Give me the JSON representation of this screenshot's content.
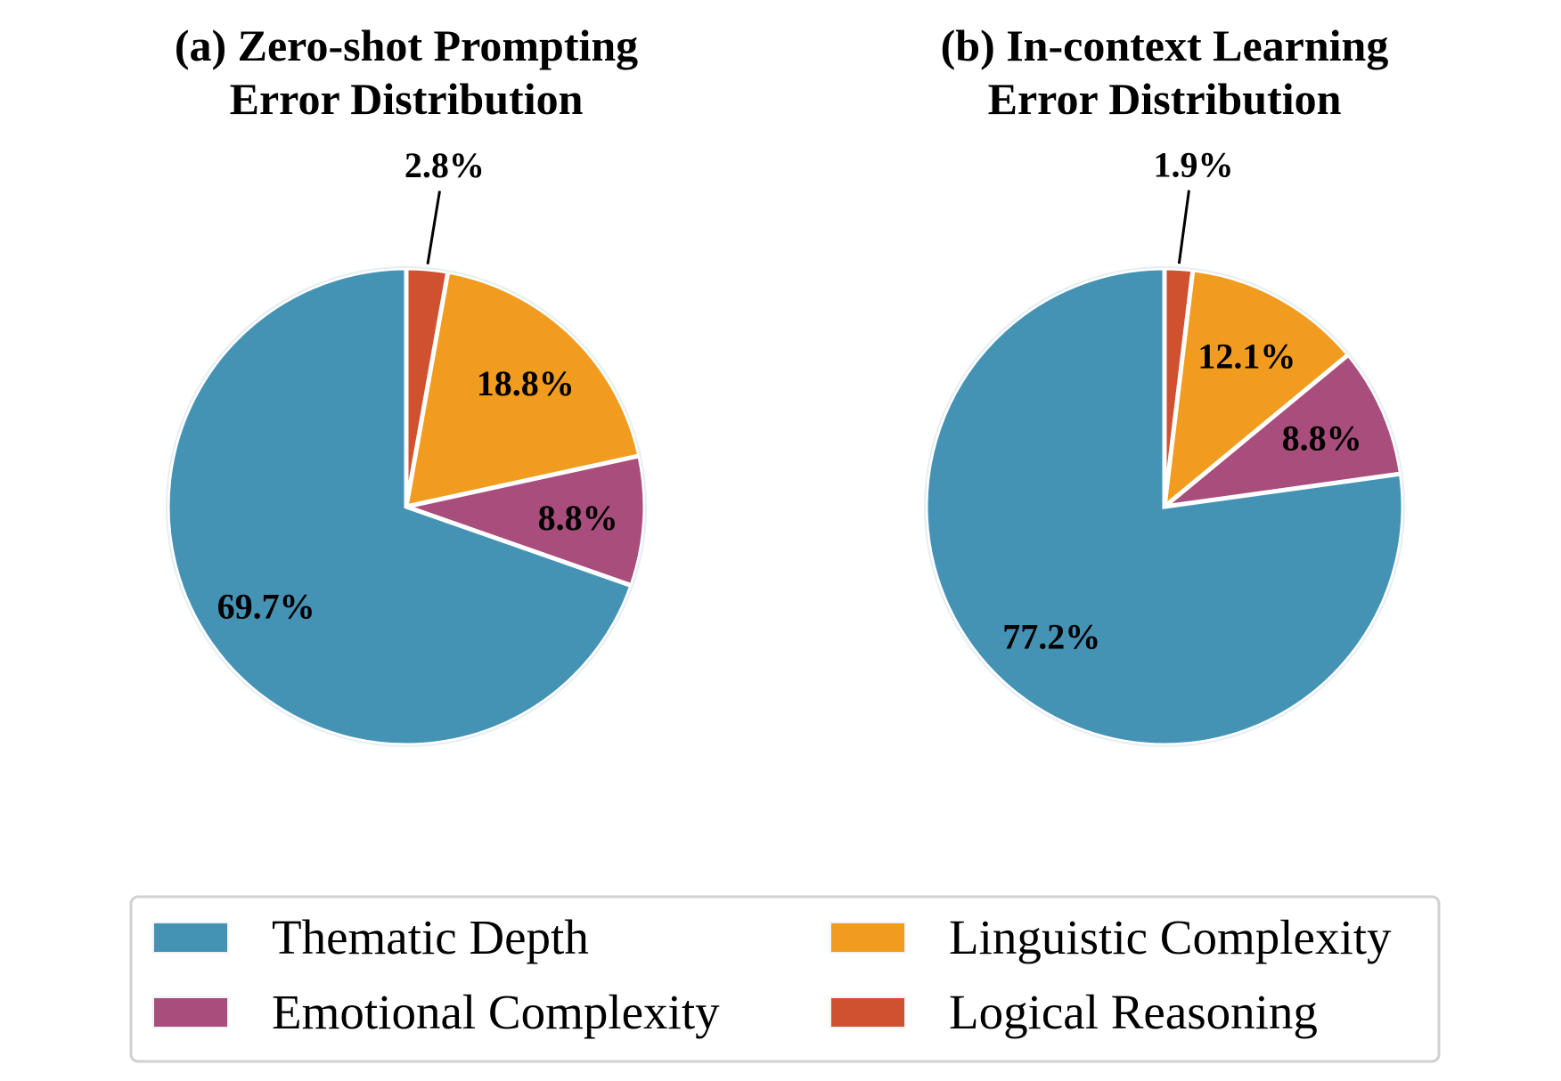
{
  "chart_data": [
    {
      "type": "pie",
      "title_lines": [
        "(a) Zero-shot Prompting",
        "Error Distribution"
      ],
      "categories": [
        "Thematic Depth",
        "Linguistic Complexity",
        "Emotional Complexity",
        "Logical Reasoning"
      ],
      "values": [
        69.7,
        18.8,
        8.8,
        2.8
      ],
      "labels": [
        "69.7%",
        "18.8%",
        "8.8%",
        "2.8%"
      ]
    },
    {
      "type": "pie",
      "title_lines": [
        "(b) In-context Learning",
        "Error Distribution"
      ],
      "categories": [
        "Thematic Depth",
        "Linguistic Complexity",
        "Emotional Complexity",
        "Logical Reasoning"
      ],
      "values": [
        77.2,
        12.1,
        8.8,
        1.9
      ],
      "labels": [
        "77.2%",
        "12.1%",
        "8.8%",
        "1.9%"
      ]
    }
  ],
  "legend": {
    "position": "bottom",
    "items": [
      {
        "label": "Thematic Depth",
        "color": "#4493B5"
      },
      {
        "label": "Linguistic Complexity",
        "color": "#F19C1F"
      },
      {
        "label": "Emotional Complexity",
        "color": "#A94D7D"
      },
      {
        "label": "Logical Reasoning",
        "color": "#CF5130"
      }
    ]
  },
  "colors": {
    "Thematic Depth": "#4493B5",
    "Linguistic Complexity": "#F19C1F",
    "Emotional Complexity": "#A94D7D",
    "Logical Reasoning": "#CF5130"
  }
}
